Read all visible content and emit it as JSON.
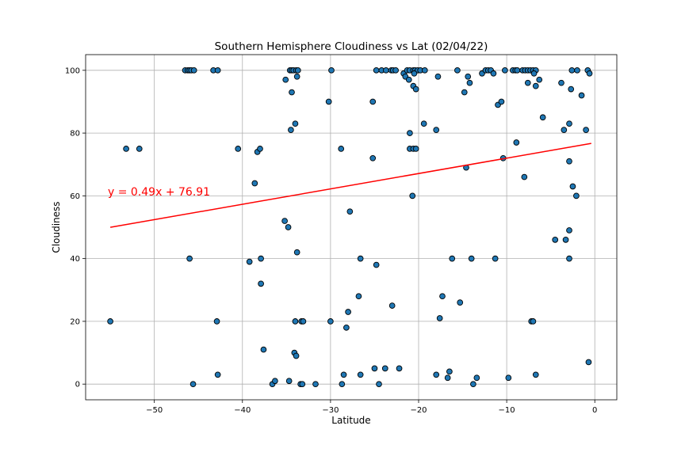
{
  "chart_data": {
    "type": "scatter",
    "title": "Southern Hemisphere Cloudiness vs Lat (02/04/22)",
    "xlabel": "Latitude",
    "ylabel": "Cloudiness",
    "xlim": [
      -57.8,
      2.5
    ],
    "ylim": [
      -5,
      105
    ],
    "xticks": [
      -50,
      -40,
      -30,
      -20,
      -10,
      0
    ],
    "yticks": [
      0,
      20,
      40,
      60,
      80,
      100
    ],
    "x_tick_labels": [
      "−50",
      "−40",
      "−30",
      "−20",
      "−10",
      "0"
    ],
    "y_tick_labels": [
      "0",
      "20",
      "40",
      "60",
      "80",
      "100"
    ],
    "grid": true,
    "colors": {
      "point_fill": "#1f77b4",
      "point_edge": "#000000",
      "regression": "#ff0000",
      "grid": "#b0b0b0"
    },
    "regression": {
      "slope": 0.49,
      "intercept": 76.91,
      "x_range": [
        -55.0,
        -0.4
      ],
      "equation_label": "y = 0.49x + 76.91"
    },
    "points": [
      [
        -55.0,
        20
      ],
      [
        -53.2,
        75
      ],
      [
        -51.7,
        75
      ],
      [
        -46.5,
        100
      ],
      [
        -46.2,
        100
      ],
      [
        -46.0,
        100
      ],
      [
        -45.8,
        100
      ],
      [
        -45.5,
        100
      ],
      [
        -46.0,
        40
      ],
      [
        -45.6,
        0
      ],
      [
        -43.3,
        100
      ],
      [
        -42.8,
        100
      ],
      [
        -42.9,
        20
      ],
      [
        -42.8,
        3
      ],
      [
        -40.5,
        75
      ],
      [
        -39.2,
        39
      ],
      [
        -38.6,
        64
      ],
      [
        -38.3,
        74
      ],
      [
        -38.0,
        75
      ],
      [
        -37.9,
        40
      ],
      [
        -37.9,
        32
      ],
      [
        -37.6,
        11
      ],
      [
        -36.6,
        0
      ],
      [
        -36.3,
        1
      ],
      [
        -35.2,
        52
      ],
      [
        -35.1,
        97
      ],
      [
        -34.8,
        50
      ],
      [
        -34.7,
        1
      ],
      [
        -34.6,
        100
      ],
      [
        -34.4,
        100
      ],
      [
        -34.2,
        100
      ],
      [
        -33.9,
        100
      ],
      [
        -33.7,
        100
      ],
      [
        -34.5,
        81
      ],
      [
        -34.4,
        93
      ],
      [
        -34.0,
        83
      ],
      [
        -33.8,
        98
      ],
      [
        -33.8,
        42
      ],
      [
        -34.0,
        20
      ],
      [
        -33.3,
        20
      ],
      [
        -33.1,
        20
      ],
      [
        -34.1,
        10
      ],
      [
        -33.9,
        9
      ],
      [
        -33.4,
        0
      ],
      [
        -33.2,
        0
      ],
      [
        -31.7,
        0
      ],
      [
        -30.2,
        90
      ],
      [
        -29.9,
        100
      ],
      [
        -30.0,
        20
      ],
      [
        -28.8,
        75
      ],
      [
        -28.5,
        3
      ],
      [
        -28.7,
        0
      ],
      [
        -28.2,
        18
      ],
      [
        -28.0,
        23
      ],
      [
        -27.8,
        55
      ],
      [
        -26.8,
        28
      ],
      [
        -26.6,
        40
      ],
      [
        -26.6,
        3
      ],
      [
        -25.2,
        90
      ],
      [
        -25.2,
        72
      ],
      [
        -25.0,
        5
      ],
      [
        -24.8,
        38
      ],
      [
        -24.5,
        0
      ],
      [
        -24.8,
        100
      ],
      [
        -24.2,
        100
      ],
      [
        -23.7,
        100
      ],
      [
        -23.1,
        100
      ],
      [
        -22.9,
        100
      ],
      [
        -22.6,
        100
      ],
      [
        -23.8,
        5
      ],
      [
        -23.0,
        25
      ],
      [
        -22.2,
        5
      ],
      [
        -21.7,
        99
      ],
      [
        -21.5,
        98
      ],
      [
        -21.3,
        100
      ],
      [
        -21.0,
        100
      ],
      [
        -21.1,
        97
      ],
      [
        -21.0,
        80
      ],
      [
        -21.0,
        75
      ],
      [
        -20.6,
        100
      ],
      [
        -20.4,
        100
      ],
      [
        -20.1,
        100
      ],
      [
        -19.8,
        100
      ],
      [
        -19.3,
        100
      ],
      [
        -20.5,
        99
      ],
      [
        -20.6,
        95
      ],
      [
        -20.3,
        94
      ],
      [
        -20.6,
        75
      ],
      [
        -20.3,
        75
      ],
      [
        -20.7,
        60
      ],
      [
        -19.4,
        83
      ],
      [
        -18.0,
        81
      ],
      [
        -17.8,
        98
      ],
      [
        -18.0,
        3
      ],
      [
        -17.6,
        21
      ],
      [
        -17.3,
        28
      ],
      [
        -16.7,
        2
      ],
      [
        -16.5,
        4
      ],
      [
        -16.2,
        40
      ],
      [
        -15.6,
        100
      ],
      [
        -15.3,
        26
      ],
      [
        -14.8,
        93
      ],
      [
        -14.6,
        69
      ],
      [
        -14.4,
        98
      ],
      [
        -14.2,
        96
      ],
      [
        -14.0,
        40
      ],
      [
        -13.8,
        0
      ],
      [
        -13.4,
        2
      ],
      [
        -12.8,
        99
      ],
      [
        -12.4,
        100
      ],
      [
        -12.1,
        100
      ],
      [
        -11.8,
        100
      ],
      [
        -11.5,
        99
      ],
      [
        -11.3,
        40
      ],
      [
        -11.0,
        89
      ],
      [
        -10.6,
        90
      ],
      [
        -10.4,
        72
      ],
      [
        -10.2,
        100
      ],
      [
        -9.8,
        2
      ],
      [
        -9.3,
        100
      ],
      [
        -9.0,
        100
      ],
      [
        -8.8,
        100
      ],
      [
        -8.9,
        77
      ],
      [
        -8.2,
        100
      ],
      [
        -7.9,
        100
      ],
      [
        -7.6,
        100
      ],
      [
        -7.3,
        100
      ],
      [
        -7.0,
        100
      ],
      [
        -6.7,
        100
      ],
      [
        -8.0,
        66
      ],
      [
        -7.6,
        96
      ],
      [
        -7.2,
        20
      ],
      [
        -7.0,
        20
      ],
      [
        -6.9,
        99
      ],
      [
        -6.7,
        95
      ],
      [
        -6.3,
        97
      ],
      [
        -6.7,
        3
      ],
      [
        -5.9,
        85
      ],
      [
        -4.5,
        46
      ],
      [
        -3.8,
        96
      ],
      [
        -3.5,
        81
      ],
      [
        -3.3,
        46
      ],
      [
        -2.9,
        83
      ],
      [
        -2.9,
        71
      ],
      [
        -2.9,
        49
      ],
      [
        -2.9,
        40
      ],
      [
        -2.7,
        94
      ],
      [
        -2.6,
        100
      ],
      [
        -2.5,
        63
      ],
      [
        -2.0,
        100
      ],
      [
        -2.1,
        60
      ],
      [
        -1.5,
        92
      ],
      [
        -1.0,
        81
      ],
      [
        -0.8,
        100
      ],
      [
        -0.6,
        99
      ],
      [
        -0.7,
        7
      ]
    ]
  }
}
